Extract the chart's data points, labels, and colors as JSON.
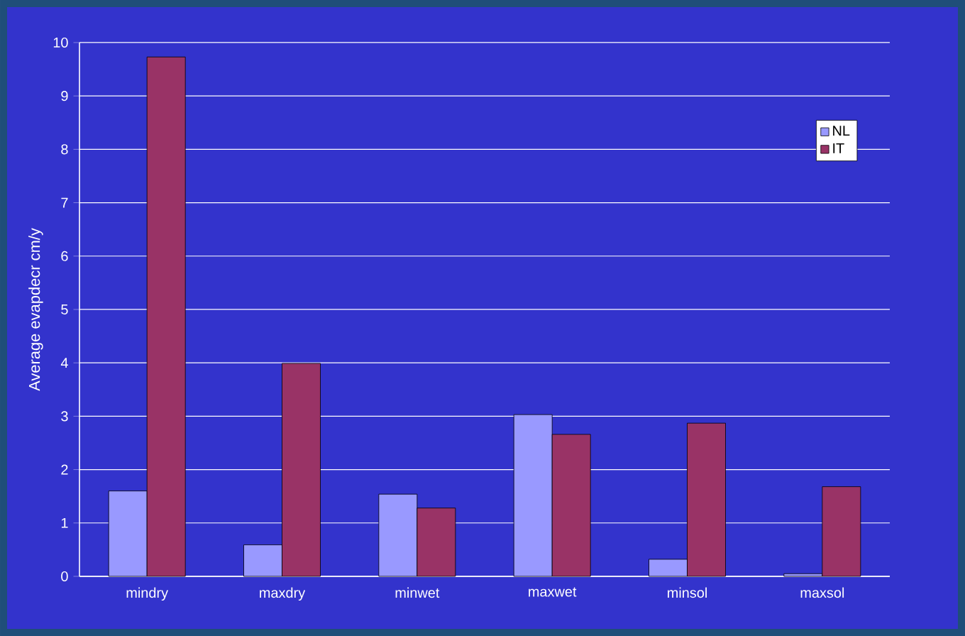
{
  "chart_data": {
    "type": "bar",
    "ylabel": "Average evapdecr cm/y",
    "categories": [
      "mindry",
      "maxdry",
      "minwet",
      "maxwet",
      "minsol",
      "maxsol"
    ],
    "series": [
      {
        "name": "NL",
        "color": "#9999ff",
        "values": [
          1.6,
          0.59,
          1.54,
          3.03,
          0.32,
          0.05
        ]
      },
      {
        "name": "IT",
        "color": "#993366",
        "values": [
          9.73,
          3.99,
          1.28,
          2.66,
          2.87,
          1.68
        ]
      }
    ],
    "ylim": [
      0,
      10
    ],
    "yticks": [
      0,
      1,
      2,
      3,
      4,
      5,
      6,
      7,
      8,
      9,
      10
    ],
    "grid": "y",
    "legend": "top right"
  }
}
